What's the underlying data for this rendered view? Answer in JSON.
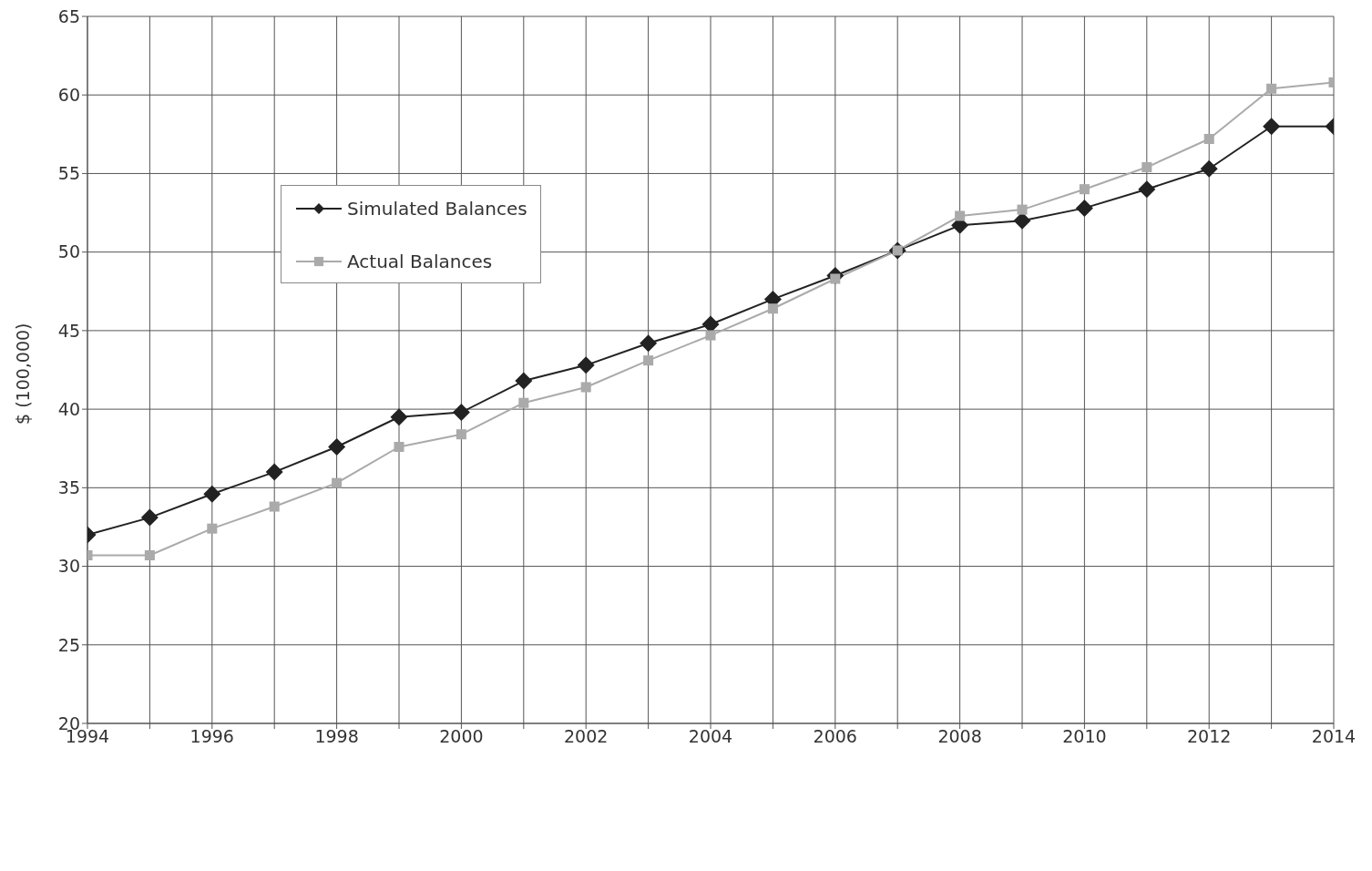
{
  "chart_data": {
    "type": "line",
    "ylabel": "$ (100,000)",
    "x": [
      1994,
      1995,
      1996,
      1997,
      1998,
      1999,
      2000,
      2001,
      2002,
      2003,
      2004,
      2005,
      2006,
      2007,
      2008,
      2009,
      2010,
      2011,
      2012,
      2013,
      2014
    ],
    "series": [
      {
        "name": "Simulated Balances",
        "color": "#222222",
        "marker": "diamond",
        "values": [
          32.0,
          33.1,
          34.6,
          36.0,
          37.6,
          39.5,
          39.8,
          41.8,
          42.8,
          44.2,
          45.4,
          47.0,
          48.5,
          50.1,
          51.7,
          52.0,
          52.8,
          54.0,
          55.3,
          58.0,
          58.0
        ]
      },
      {
        "name": "Actual Balances",
        "color": "#aaaaaa",
        "marker": "square",
        "values": [
          30.7,
          30.7,
          32.4,
          33.8,
          35.3,
          37.6,
          38.4,
          40.4,
          41.4,
          43.1,
          44.7,
          46.4,
          48.3,
          50.1,
          52.3,
          52.7,
          54.0,
          55.4,
          57.2,
          60.4,
          60.8
        ]
      }
    ],
    "xlim": [
      1994,
      2014
    ],
    "xticks": [
      1994,
      {
        "value": 1995,
        "label": null
      },
      1996,
      {
        "value": 1997,
        "label": null
      },
      1998,
      {
        "value": 1999,
        "label": null
      },
      2000,
      {
        "value": 2001,
        "label": null
      },
      2002,
      {
        "value": 2003,
        "label": null
      },
      2004,
      {
        "value": 2005,
        "label": null
      },
      2006,
      {
        "value": 2007,
        "label": null
      },
      2008,
      {
        "value": 2009,
        "label": null
      },
      2010,
      {
        "value": 2011,
        "label": null
      },
      2012,
      {
        "value": 2013,
        "label": null
      },
      2014
    ],
    "ylim": [
      20,
      65
    ],
    "yticks": [
      20,
      25,
      30,
      35,
      40,
      45,
      50,
      55,
      60,
      65
    ],
    "grid": true,
    "legend": "top left",
    "line_style": "solid"
  }
}
